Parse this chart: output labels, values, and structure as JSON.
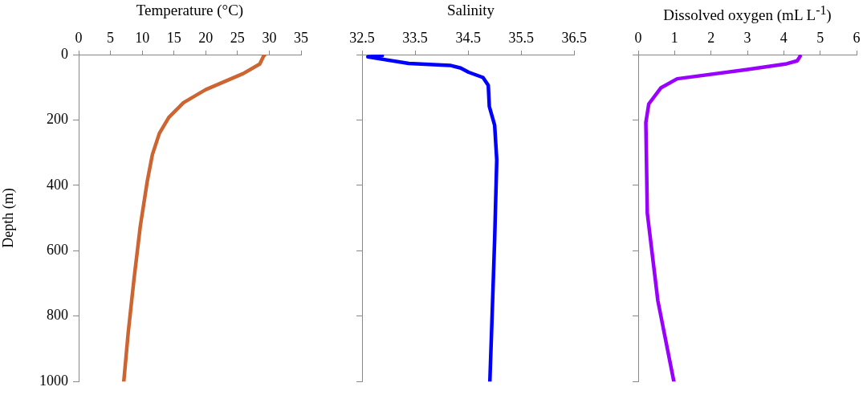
{
  "chart_data": [
    {
      "type": "line",
      "xlabel": "Temperature (°C)",
      "ylabel": "Depth (m)",
      "xlim": [
        0,
        35
      ],
      "xticks": [
        0,
        5,
        10,
        15,
        20,
        25,
        30,
        35
      ],
      "ylim": [
        1000,
        0
      ],
      "yticks": [
        0,
        200,
        400,
        600,
        800,
        1000
      ],
      "grid": false,
      "marker": "none",
      "series": [
        {
          "color": "#cd6532",
          "x": [
            29.3,
            29.1,
            28.5,
            25.9,
            20.0,
            16.5,
            14.2,
            12.7,
            11.6,
            10.8,
            9.7,
            8.7,
            7.8,
            7.1
          ],
          "values": [
            0,
            5,
            29,
            58,
            107,
            147,
            192,
            241,
            306,
            387,
            525,
            688,
            850,
            1000
          ]
        }
      ]
    },
    {
      "type": "line",
      "xlabel": "Salinity",
      "xlim": [
        32.5,
        36.5
      ],
      "xticks": [
        32.5,
        33.5,
        34.5,
        35.5,
        36.5
      ],
      "ylim": [
        1000,
        0
      ],
      "yticks": [
        0,
        200,
        400,
        600,
        800,
        1000
      ],
      "grid": false,
      "marker": "none",
      "tick_labels": "x",
      "series": [
        {
          "color": "#0000ff",
          "x": [
            32.88,
            32.61,
            33.38,
            34.16,
            34.36,
            34.51,
            34.78,
            34.88,
            34.9,
            35.0,
            35.04,
            35.0,
            34.95,
            34.91
          ],
          "values": [
            3,
            7,
            27,
            33,
            41,
            54,
            70,
            94,
            159,
            216,
            322,
            566,
            810,
            1000
          ]
        }
      ]
    },
    {
      "type": "line",
      "xlabel": "Dissolved oxygen (mL L$^{-1}$)",
      "xlim": [
        0,
        6
      ],
      "xticks": [
        0,
        1,
        2,
        3,
        4,
        5,
        6
      ],
      "ylim": [
        1000,
        0
      ],
      "yticks": [
        0,
        200,
        400,
        600,
        800,
        1000
      ],
      "grid": false,
      "marker": "none",
      "tick_labels": "x",
      "series": [
        {
          "color": "#9900ff",
          "x": [
            4.45,
            4.37,
            4.08,
            2.97,
            1.07,
            0.62,
            0.29,
            0.21,
            0.25,
            0.54,
            0.98
          ],
          "values": [
            5,
            19,
            28,
            46,
            74,
            102,
            151,
            208,
            485,
            753,
            1000
          ]
        }
      ]
    }
  ]
}
